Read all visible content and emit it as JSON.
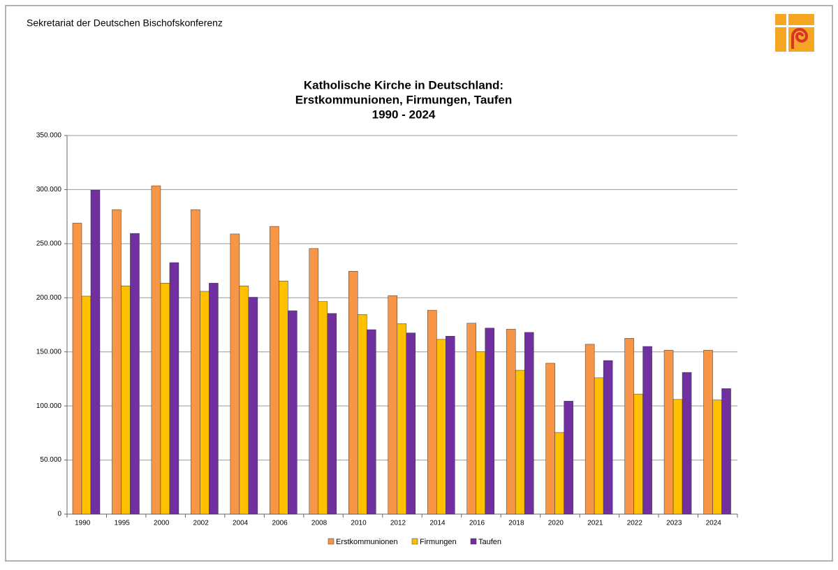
{
  "header": {
    "organization": "Sekretariat der Deutschen Bischofskonferenz"
  },
  "chart_data": {
    "type": "bar",
    "title": [
      "Katholische Kirche in Deutschland:",
      "Erstkommunionen, Firmungen, Taufen",
      "1990 - 2024"
    ],
    "categories": [
      "1990",
      "1995",
      "2000",
      "2002",
      "2004",
      "2006",
      "2008",
      "2010",
      "2012",
      "2014",
      "2016",
      "2018",
      "2020",
      "2021",
      "2022",
      "2023",
      "2024"
    ],
    "series": [
      {
        "name": "Erstkommunionen",
        "color": "#f79646",
        "values": [
          269000,
          281500,
          303500,
          281500,
          259000,
          266000,
          245500,
          224500,
          202000,
          188500,
          176500,
          171000,
          139500,
          157000,
          162500,
          151500,
          151500
        ]
      },
      {
        "name": "Firmungen",
        "color": "#ffc000",
        "values": [
          201500,
          211000,
          213500,
          206000,
          211000,
          215500,
          196500,
          184500,
          176000,
          161500,
          150000,
          133000,
          75500,
          126000,
          111000,
          106000,
          105500
        ]
      },
      {
        "name": "Taufen",
        "color": "#7030a0",
        "values": [
          299500,
          259500,
          232500,
          213500,
          200500,
          188000,
          185500,
          170500,
          167500,
          164500,
          172000,
          168000,
          104500,
          142000,
          155000,
          131000,
          116000
        ]
      }
    ],
    "ylim": [
      0,
      350000
    ],
    "yticks": [
      0,
      {
        "value": 50000,
        "label": "50.000"
      },
      {
        "value": 100000,
        "label": "100.000"
      },
      {
        "value": 150000,
        "label": "150.000"
      },
      {
        "value": 200000,
        "label": "200.000"
      },
      {
        "value": 250000,
        "label": "250.000"
      },
      {
        "value": 300000,
        "label": "300.000"
      },
      {
        "value": 350000,
        "label": "350.000"
      }
    ],
    "grid": true,
    "legend": "bottom"
  }
}
